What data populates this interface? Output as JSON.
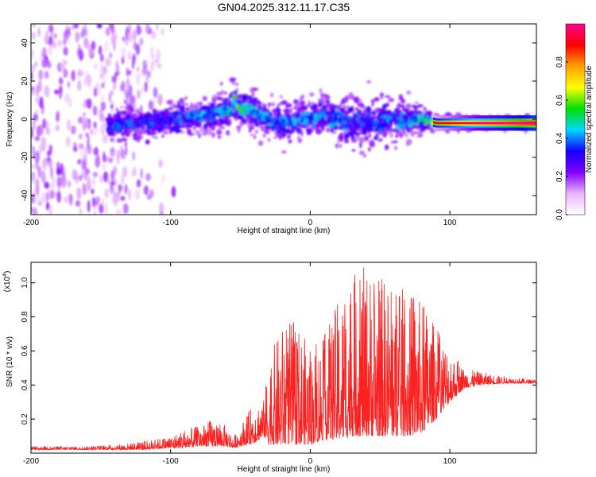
{
  "title": "GN04.2025.312.11.17.C35",
  "chart_data": [
    {
      "type": "heatmap",
      "xlabel": "Height of straight line (km)",
      "ylabel": "Frequency (Hz)",
      "xlim": [
        -200,
        162
      ],
      "ylim": [
        -50,
        50
      ],
      "xticks": [
        -200,
        -100,
        0,
        100
      ],
      "yticks": [
        -40,
        -20,
        0,
        20,
        40
      ],
      "colorbar": {
        "label": "Normalized spectral amplitude",
        "range": [
          0,
          1
        ],
        "ticks": [
          0.0,
          0.2,
          0.4,
          0.6,
          0.8
        ],
        "colors": [
          "#ffffff",
          "#e8b4ff",
          "#8000ff",
          "#1400ff",
          "#00d8ff",
          "#00e000",
          "#ffff00",
          "#ffa000",
          "#ff0000",
          "#ff0090"
        ]
      },
      "ridge": {
        "x": [
          -145,
          -120,
          -100,
          -80,
          -60,
          -55,
          -50,
          -40,
          -30,
          -20,
          -10,
          0,
          10,
          20,
          30,
          40,
          50,
          60,
          70,
          80,
          90,
          100,
          110,
          120,
          140,
          162
        ],
        "freq": [
          -3,
          -2,
          0,
          2,
          4,
          8,
          6,
          4,
          0,
          -2,
          0,
          1,
          2,
          0,
          -2,
          -1,
          -2,
          0,
          -1,
          0,
          -2,
          -2,
          -2,
          -2,
          -2,
          -2
        ],
        "spread": [
          7,
          7,
          8,
          8,
          9,
          11,
          10,
          9,
          8,
          8,
          9,
          9,
          10,
          11,
          12,
          12,
          11,
          10,
          9,
          7,
          4,
          3,
          3,
          3,
          3,
          3
        ],
        "peak_amplitude": [
          0.35,
          0.35,
          0.35,
          0.4,
          0.45,
          0.55,
          0.5,
          0.45,
          0.4,
          0.4,
          0.4,
          0.4,
          0.4,
          0.4,
          0.35,
          0.35,
          0.4,
          0.4,
          0.4,
          0.5,
          0.6,
          0.65,
          0.7,
          0.8,
          0.85,
          0.9
        ]
      },
      "noise_region": {
        "x_range": [
          -200,
          -140
        ],
        "freq_range": [
          -50,
          50
        ]
      }
    },
    {
      "type": "line",
      "xlabel": "Height of straight line (km)",
      "ylabel": "SNR (10 * v/v)",
      "y_multiplier": "(x10",
      "y_multiplier_exp": "4",
      "y_multiplier_close": ")",
      "xlim": [
        -200,
        162
      ],
      "ylim": [
        0,
        1.12
      ],
      "xticks": [
        -200,
        -100,
        0,
        100
      ],
      "yticks": [
        0.2,
        0.4,
        0.6,
        0.8,
        1.0
      ],
      "color": "#ff2020",
      "envelope": {
        "x": [
          -200,
          -160,
          -140,
          -120,
          -100,
          -90,
          -80,
          -70,
          -60,
          -55,
          -40,
          -33,
          -30,
          -20,
          -10,
          0,
          10,
          20,
          30,
          40,
          50,
          60,
          70,
          80,
          90,
          100,
          110,
          120,
          140,
          162
        ],
        "baseline": [
          0.02,
          0.02,
          0.02,
          0.02,
          0.03,
          0.03,
          0.04,
          0.04,
          0.04,
          0.03,
          0.06,
          0.1,
          0.05,
          0.05,
          0.05,
          0.05,
          0.08,
          0.08,
          0.1,
          0.1,
          0.1,
          0.1,
          0.1,
          0.12,
          0.2,
          0.3,
          0.38,
          0.4,
          0.41,
          0.41
        ],
        "peak": [
          0.04,
          0.04,
          0.05,
          0.07,
          0.1,
          0.14,
          0.16,
          0.2,
          0.16,
          0.1,
          0.3,
          0.32,
          0.55,
          0.75,
          0.8,
          0.6,
          0.7,
          0.9,
          1.05,
          1.1,
          1.05,
          1.0,
          0.95,
          0.9,
          0.75,
          0.62,
          0.5,
          0.48,
          0.45,
          0.43
        ]
      }
    }
  ]
}
